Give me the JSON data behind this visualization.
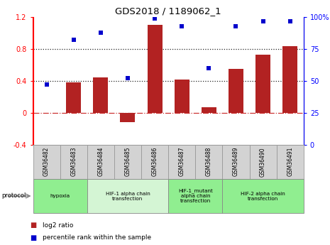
{
  "title": "GDS2018 / 1189062_1",
  "samples": [
    "GSM36482",
    "GSM36483",
    "GSM36484",
    "GSM36485",
    "GSM36486",
    "GSM36487",
    "GSM36488",
    "GSM36489",
    "GSM36490",
    "GSM36491"
  ],
  "log2_ratio": [
    0.0,
    0.38,
    0.44,
    -0.12,
    1.1,
    0.42,
    0.07,
    0.55,
    0.73,
    0.84
  ],
  "percentile_rank": [
    47,
    82,
    88,
    52,
    99,
    93,
    60,
    93,
    97,
    97
  ],
  "bar_color": "#b22222",
  "dot_color": "#0000cc",
  "left_ylim": [
    -0.4,
    1.2
  ],
  "right_ylim": [
    0,
    100
  ],
  "left_yticks": [
    -0.4,
    0.0,
    0.4,
    0.8,
    1.2
  ],
  "left_yticklabels": [
    "-0.4",
    "0",
    "0.4",
    "0.8",
    "1.2"
  ],
  "right_yticks": [
    0,
    25,
    50,
    75,
    100
  ],
  "right_yticklabels": [
    "0",
    "25",
    "50",
    "75",
    "100%"
  ],
  "hline_vals": [
    0.0,
    0.4,
    0.8
  ],
  "hline_styles": [
    "dashdot",
    "dotted",
    "dotted"
  ],
  "hline_colors": [
    "#cc3333",
    "#222222",
    "#222222"
  ],
  "hline_lw": [
    0.9,
    0.9,
    0.9
  ],
  "protocols": [
    {
      "label": "hypoxia",
      "start": 0,
      "end": 2,
      "color": "#90ee90"
    },
    {
      "label": "HIF-1 alpha chain\ntransfection",
      "start": 2,
      "end": 5,
      "color": "#d4f5d4"
    },
    {
      "label": "HIF-1_mutant\nalpha chain\ntransfection",
      "start": 5,
      "end": 7,
      "color": "#90ee90"
    },
    {
      "label": "HIF-2 alpha chain\ntransfection",
      "start": 7,
      "end": 10,
      "color": "#90ee90"
    }
  ],
  "protocol_label": "protocol",
  "legend_red_label": "log2 ratio",
  "legend_blue_label": "percentile rank within the sample",
  "bar_color_legend": "#b22222",
  "dot_color_legend": "#0000cc",
  "bar_width": 0.55,
  "sample_box_color": "#d3d3d3",
  "sample_box_edgecolor": "#999999"
}
